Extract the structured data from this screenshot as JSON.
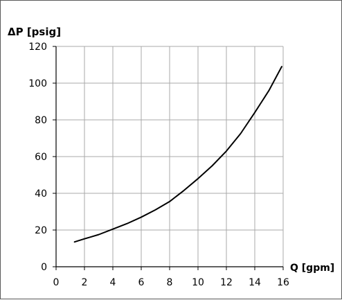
{
  "chart_data": {
    "type": "line",
    "ylabel": "ΔP [psig]",
    "xlabel": "Q [gpm]",
    "xlim": [
      0,
      16
    ],
    "ylim": [
      0,
      120
    ],
    "x_ticks": [
      "0",
      "2",
      "4",
      "6",
      "8",
      "10",
      "12",
      "14",
      "16"
    ],
    "y_ticks": [
      "0",
      "20",
      "40",
      "60",
      "80",
      "100",
      "120"
    ],
    "grid": true,
    "series": [
      {
        "x": [
          1.3,
          2,
          3,
          4,
          5,
          6,
          7,
          8,
          9,
          10,
          11,
          12,
          13,
          14,
          15,
          15.9
        ],
        "y": [
          13.5,
          15.2,
          17.5,
          20.5,
          23.5,
          27,
          31,
          35.5,
          41.5,
          48,
          55,
          63,
          72.5,
          84,
          96,
          109
        ]
      }
    ]
  }
}
